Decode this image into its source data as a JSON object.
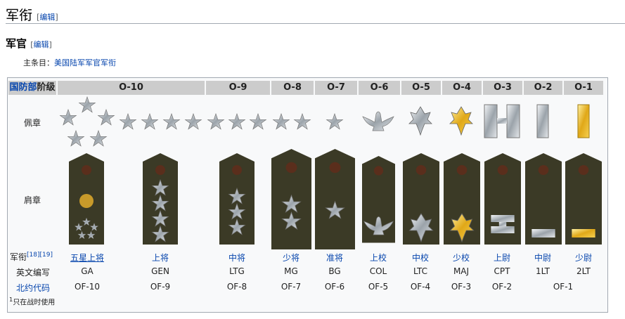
{
  "section": {
    "title": "军衔",
    "edit": "编辑"
  },
  "subsection": {
    "title": "军官",
    "edit": "编辑"
  },
  "main_article": {
    "label": "主条目：",
    "link": "美国陆军军官军衔"
  },
  "table": {
    "corner": {
      "link": "国防部",
      "text": "阶级"
    },
    "grades": [
      "O-10",
      "O-9",
      "O-8",
      "O-7",
      "O-6",
      "O-5",
      "O-4",
      "O-3",
      "O-2",
      "O-1"
    ],
    "row_labels": {
      "collar": "佩章",
      "shoulder": "肩章",
      "rank": "军衔",
      "refs": "[18][19]",
      "abbr": "英文编写",
      "nato": "北约代码"
    },
    "ranks": [
      "五星上将",
      "上将",
      "中将",
      "少将",
      "准将",
      "上校",
      "中校",
      "少校",
      "上尉",
      "中尉",
      "少尉"
    ],
    "abbrs": [
      "GA",
      "GEN",
      "LTG",
      "MG",
      "BG",
      "COL",
      "LTC",
      "MAJ",
      "CPT",
      "1LT",
      "2LT"
    ],
    "nato": [
      "OF-10",
      "OF-9",
      "OF-8",
      "OF-7",
      "OF-6",
      "OF-5",
      "OF-4",
      "OF-3",
      "OF-2",
      "OF-1"
    ],
    "footnote": {
      "mark": "1",
      "text": "只在战时使用"
    }
  },
  "colors": {
    "board": "#3b3a26",
    "silver": "#c8ccd0",
    "gold": "#e8b820",
    "header": "#cccccc"
  }
}
